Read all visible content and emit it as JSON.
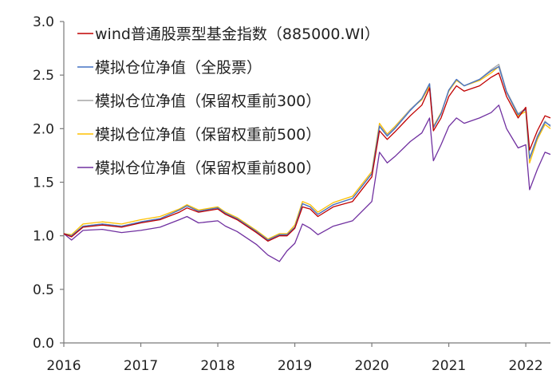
{
  "chart_data": {
    "type": "line",
    "title": "",
    "xlabel": "",
    "ylabel": "",
    "ylim": [
      0,
      3.0
    ],
    "y_ticks": [
      "0.0",
      "0.5",
      "1.0",
      "1.5",
      "2.0",
      "2.5",
      "3.0"
    ],
    "y_tick_values": [
      0,
      0.5,
      1.0,
      1.5,
      2.0,
      2.5,
      3.0
    ],
    "x_ticks": [
      "2016",
      "2017",
      "2018",
      "2019",
      "2020",
      "2021",
      "2022"
    ],
    "x_tick_values": [
      2016,
      2017,
      2018,
      2019,
      2020,
      2021,
      2022
    ],
    "xlim": [
      2016,
      2022.32
    ],
    "grid": false,
    "legend_position": "top-left",
    "x": [
      2016.0,
      2016.1,
      2016.25,
      2016.5,
      2016.75,
      2017.0,
      2017.25,
      2017.5,
      2017.6,
      2017.75,
      2018.0,
      2018.1,
      2018.25,
      2018.5,
      2018.65,
      2018.8,
      2018.9,
      2019.0,
      2019.1,
      2019.2,
      2019.3,
      2019.5,
      2019.75,
      2020.0,
      2020.1,
      2020.2,
      2020.3,
      2020.5,
      2020.65,
      2020.75,
      2020.8,
      2020.9,
      2021.0,
      2021.1,
      2021.2,
      2021.4,
      2021.55,
      2021.65,
      2021.75,
      2021.9,
      2022.0,
      2022.05,
      2022.15,
      2022.25,
      2022.32
    ],
    "series": [
      {
        "name": "wind普通股票型基金指数（885000.WI）",
        "color": "#c00000",
        "values": [
          1.02,
          0.99,
          1.08,
          1.1,
          1.08,
          1.12,
          1.15,
          1.22,
          1.26,
          1.22,
          1.25,
          1.2,
          1.15,
          1.03,
          0.95,
          1.0,
          1.0,
          1.07,
          1.27,
          1.25,
          1.18,
          1.27,
          1.32,
          1.55,
          1.98,
          1.9,
          1.97,
          2.12,
          2.22,
          2.38,
          1.98,
          2.1,
          2.3,
          2.4,
          2.35,
          2.4,
          2.48,
          2.52,
          2.3,
          2.1,
          2.2,
          1.8,
          1.98,
          2.12,
          2.1
        ]
      },
      {
        "name": "模拟仓位净值（全股票）",
        "color": "#4472c4",
        "values": [
          1.02,
          1.0,
          1.09,
          1.11,
          1.09,
          1.13,
          1.16,
          1.24,
          1.28,
          1.23,
          1.26,
          1.21,
          1.16,
          1.04,
          0.96,
          1.01,
          1.01,
          1.08,
          1.3,
          1.27,
          1.2,
          1.29,
          1.35,
          1.58,
          2.02,
          1.93,
          2.0,
          2.17,
          2.28,
          2.42,
          2.01,
          2.14,
          2.36,
          2.46,
          2.4,
          2.46,
          2.54,
          2.58,
          2.34,
          2.13,
          2.18,
          1.72,
          1.92,
          2.06,
          2.03
        ]
      },
      {
        "name": "模拟仓位净值（保留权重前300）",
        "color": "#a5a5a5",
        "values": [
          1.02,
          1.0,
          1.09,
          1.11,
          1.09,
          1.13,
          1.16,
          1.24,
          1.28,
          1.23,
          1.26,
          1.21,
          1.16,
          1.04,
          0.96,
          1.01,
          1.01,
          1.08,
          1.3,
          1.27,
          1.2,
          1.29,
          1.35,
          1.58,
          2.03,
          1.94,
          2.01,
          2.18,
          2.28,
          2.42,
          2.01,
          2.14,
          2.36,
          2.46,
          2.4,
          2.46,
          2.55,
          2.6,
          2.35,
          2.14,
          2.19,
          1.73,
          1.93,
          2.07,
          2.02
        ]
      },
      {
        "name": "模拟仓位净值（保留权重前500）",
        "color": "#ffc000",
        "values": [
          1.02,
          1.01,
          1.11,
          1.13,
          1.11,
          1.15,
          1.18,
          1.25,
          1.29,
          1.24,
          1.27,
          1.22,
          1.17,
          1.05,
          0.97,
          1.02,
          1.02,
          1.1,
          1.32,
          1.29,
          1.22,
          1.31,
          1.37,
          1.6,
          2.05,
          1.95,
          2.02,
          2.18,
          2.27,
          2.4,
          2.02,
          2.15,
          2.35,
          2.45,
          2.4,
          2.45,
          2.52,
          2.58,
          2.34,
          2.12,
          2.16,
          1.68,
          1.9,
          2.04,
          2.0
        ]
      },
      {
        "name": "模拟仓位净值（保留权重前800）",
        "color": "#7030a0",
        "values": [
          1.02,
          0.96,
          1.05,
          1.06,
          1.03,
          1.05,
          1.08,
          1.15,
          1.18,
          1.12,
          1.14,
          1.09,
          1.04,
          0.92,
          0.82,
          0.76,
          0.86,
          0.93,
          1.11,
          1.07,
          1.01,
          1.09,
          1.14,
          1.32,
          1.78,
          1.68,
          1.74,
          1.88,
          1.96,
          2.1,
          1.7,
          1.85,
          2.02,
          2.1,
          2.05,
          2.1,
          2.15,
          2.22,
          2.0,
          1.82,
          1.85,
          1.43,
          1.62,
          1.78,
          1.76
        ]
      }
    ]
  }
}
